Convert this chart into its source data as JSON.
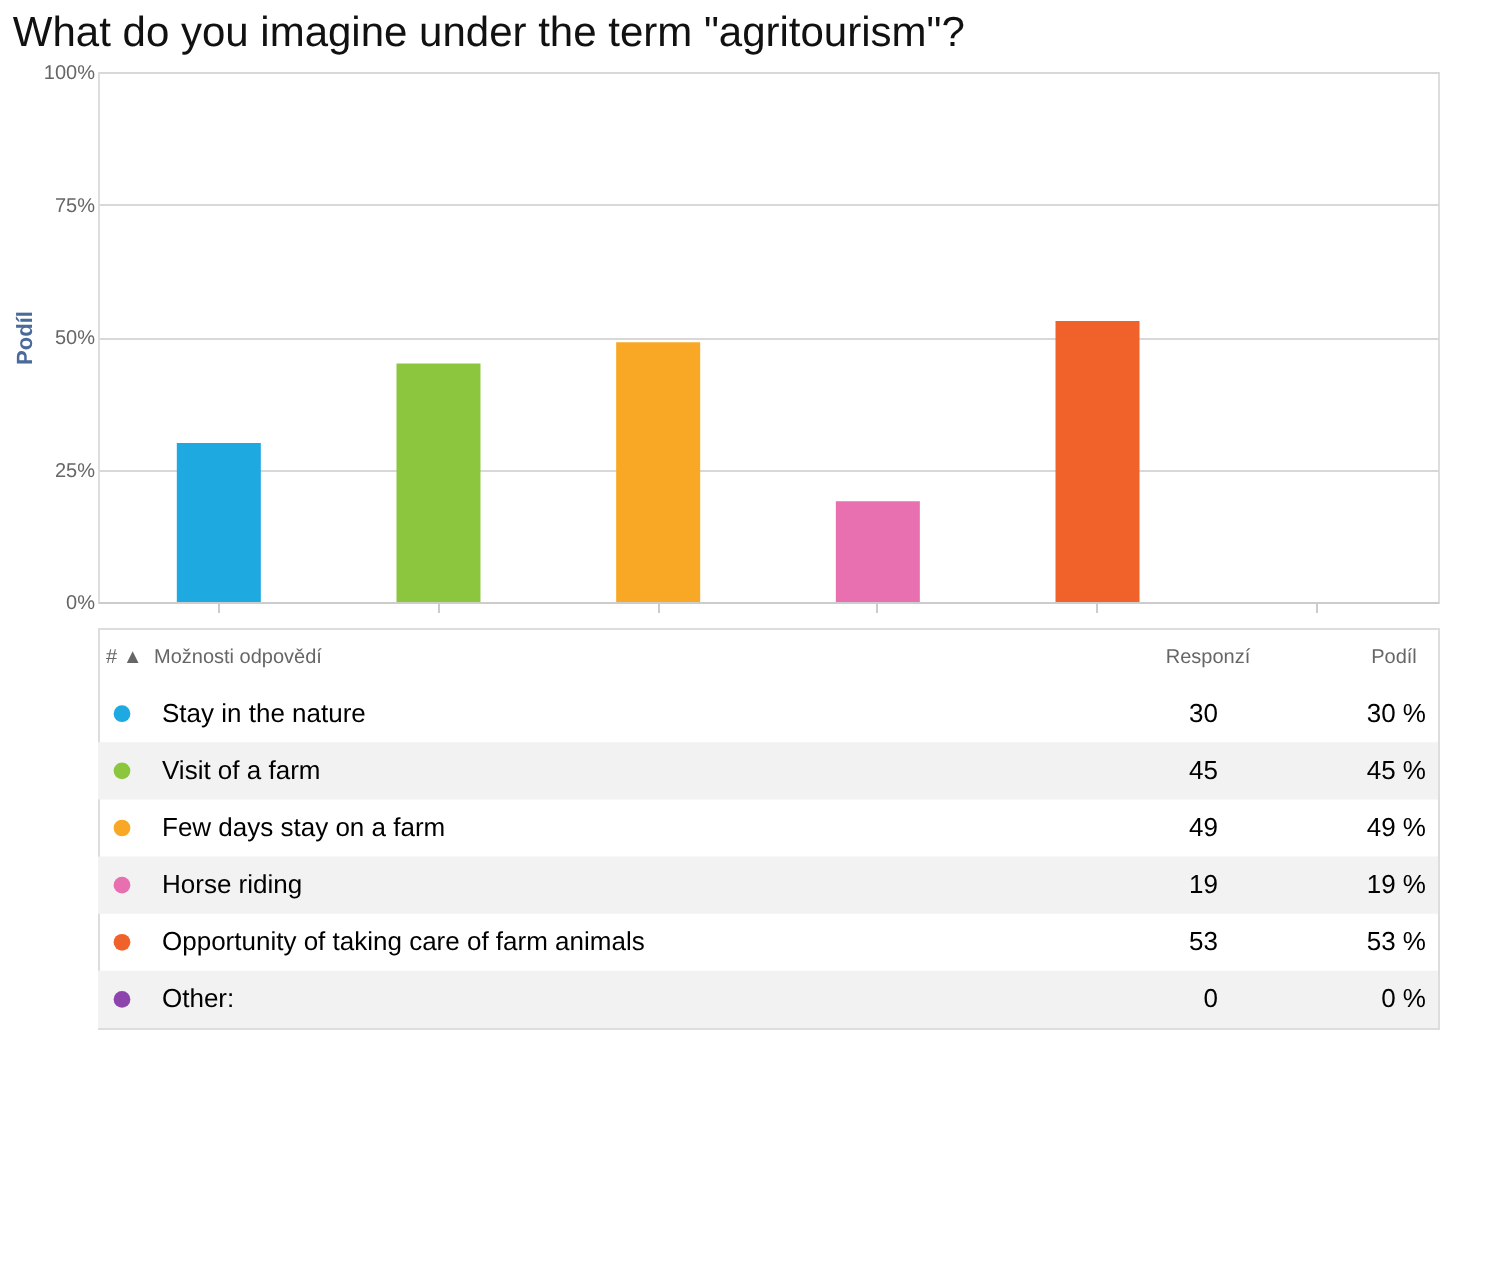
{
  "chart_data": {
    "type": "bar",
    "title": "What do you imagine under the term \"agritourism\"?",
    "ylabel": "Podíl",
    "categories": [
      null,
      null,
      null,
      null,
      null,
      null
    ],
    "series": [
      {
        "name": "Stay in the nature",
        "color": "#1ea9e1",
        "values": [
          30,
          null,
          null,
          null,
          null,
          null
        ]
      },
      {
        "name": "Visit of a farm",
        "color": "#8cc63f",
        "values": [
          null,
          45,
          null,
          null,
          null,
          null
        ]
      },
      {
        "name": "Few days stay on a farm",
        "color": "#f9a825",
        "values": [
          null,
          null,
          49,
          null,
          null,
          null
        ]
      },
      {
        "name": "Horse riding",
        "color": "#e86fb0",
        "values": [
          null,
          null,
          null,
          19,
          null,
          null
        ]
      },
      {
        "name": "Opportunity of taking care of farm animals",
        "color": "#f0622a",
        "values": [
          null,
          null,
          null,
          null,
          53,
          null
        ]
      },
      {
        "name": "Other:",
        "color": "#8e44ad",
        "values": [
          null,
          null,
          null,
          null,
          null,
          0
        ]
      }
    ],
    "ylim": [
      0,
      100
    ],
    "yticks": [
      {
        "value": 0,
        "label": "0%"
      },
      {
        "value": 25,
        "label": "25%"
      },
      {
        "value": 50,
        "label": "50%"
      },
      {
        "value": 75,
        "label": "75%"
      },
      {
        "value": 100,
        "label": "100%"
      }
    ],
    "grid": "y",
    "tick_labels": "y",
    "legend": "bottom",
    "annotations": [
      "# ▲",
      "Možnosti odpovědí",
      "Responzí",
      "Podíl",
      "30",
      "45",
      "49",
      "19",
      "53",
      "0",
      "30 %",
      "45 %",
      "49 %",
      "19 %",
      "53 %",
      "0 %"
    ]
  }
}
